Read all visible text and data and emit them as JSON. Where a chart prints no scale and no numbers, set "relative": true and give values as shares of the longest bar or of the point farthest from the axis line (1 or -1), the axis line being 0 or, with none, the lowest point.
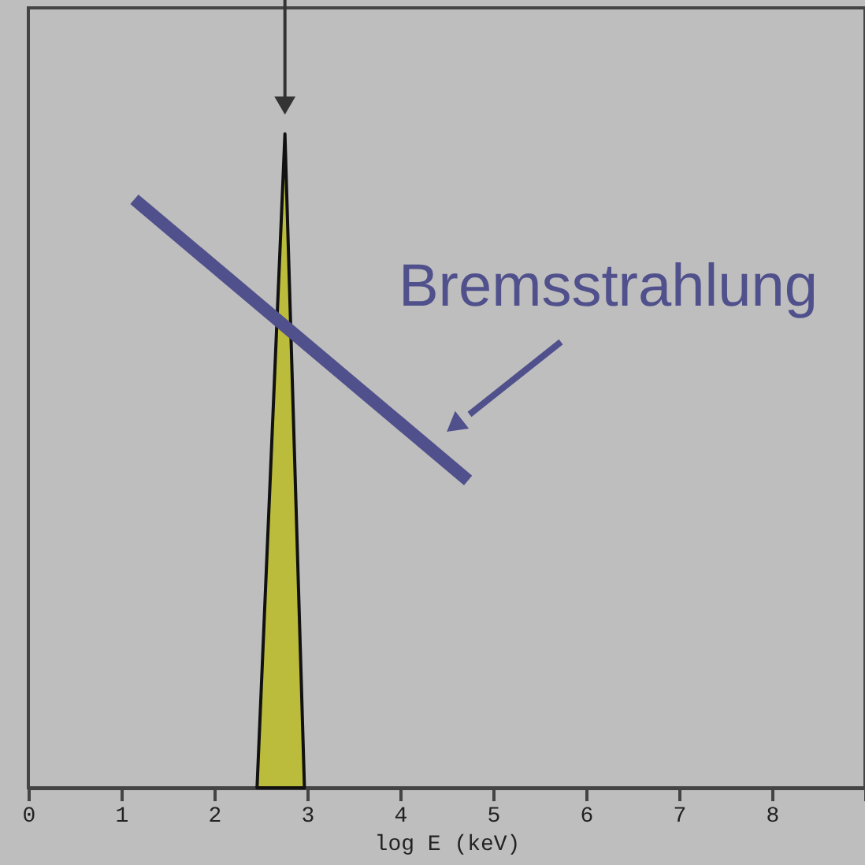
{
  "chart_data": {
    "type": "area",
    "xlabel": "log E (keV)",
    "xlim": [
      0,
      9
    ],
    "xticks": [
      0,
      1,
      2,
      3,
      4,
      5,
      6,
      7,
      8,
      {
        "value": 9,
        "label": null
      }
    ],
    "relative": true,
    "tick_labels": "x",
    "series": [
      {
        "color": "#bcbc3c",
        "x": [
          2.46,
          2.76,
          2.97
        ],
        "values": [
          0,
          1,
          0
        ]
      },
      {
        "type": "line",
        "name": "Bremsstrahlung",
        "color": "#50508c",
        "x": [
          1.14,
          4.73
        ],
        "values": [
          0.9,
          0.47
        ]
      }
    ]
  }
}
